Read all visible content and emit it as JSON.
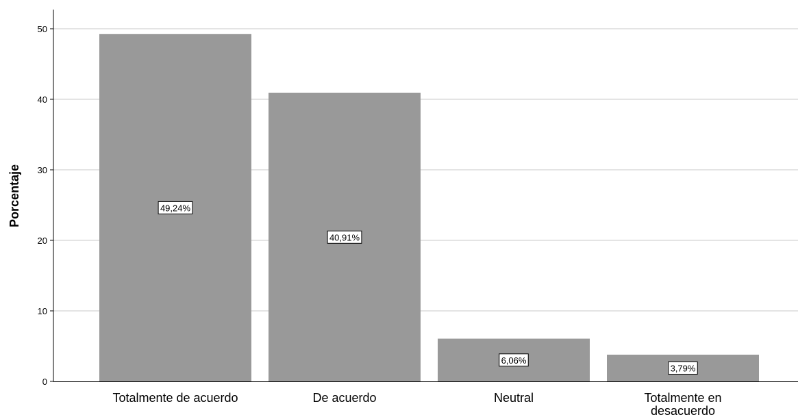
{
  "chart_data": {
    "type": "bar",
    "categories": [
      "Totalmente de acuerdo",
      "De acuerdo",
      "Neutral",
      "Totalmente en desacuerdo"
    ],
    "values": [
      49.24,
      40.91,
      6.06,
      3.79
    ],
    "data_labels": [
      "49,24%",
      "40,91%",
      "6,06%",
      "3,79%"
    ],
    "title": "",
    "xlabel": "",
    "ylabel": "Porcentaje",
    "ylim": [
      0,
      50
    ],
    "yticks": [
      0,
      10,
      20,
      30,
      40,
      50
    ],
    "grid": true,
    "bar_color": "#999999"
  }
}
